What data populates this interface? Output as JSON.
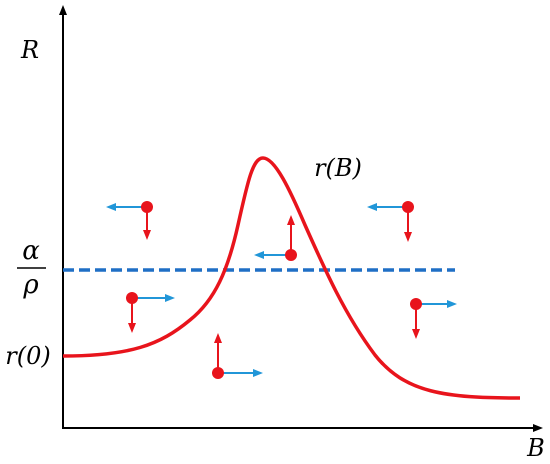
{
  "axes": {
    "y_label": "R",
    "x_label": "B"
  },
  "curve": {
    "label": "r(B)",
    "baseline_label": "r(0)",
    "color": "#e8141c"
  },
  "threshold": {
    "numerator": "α",
    "denominator": "ρ",
    "color": "#1f6fc5"
  },
  "vector_colors": {
    "dot": "#e8141c",
    "vertical_arrow": "#e8141c",
    "horizontal_arrow": "#2196d8"
  },
  "glyphs": [
    {
      "region": "upper-left",
      "vertical": "down",
      "horizontal": "left"
    },
    {
      "region": "peak",
      "vertical": "up",
      "horizontal": "left"
    },
    {
      "region": "upper-right",
      "vertical": "down",
      "horizontal": "left"
    },
    {
      "region": "lower-left",
      "vertical": "down",
      "horizontal": "right"
    },
    {
      "region": "lower-right",
      "vertical": "down",
      "horizontal": "right"
    },
    {
      "region": "bottom-center",
      "vertical": "up",
      "horizontal": "right"
    }
  ]
}
